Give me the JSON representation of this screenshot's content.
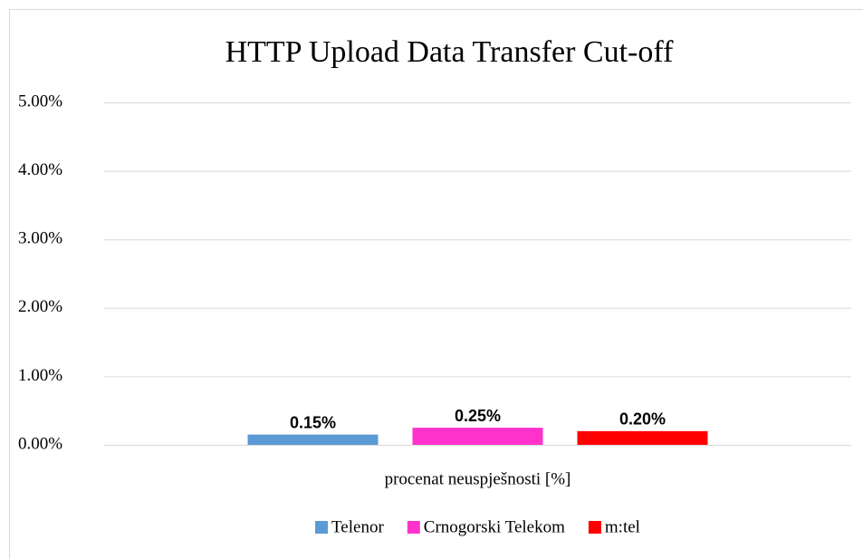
{
  "chart_data": {
    "type": "bar",
    "title": "HTTP Upload Data Transfer Cut-off",
    "categories": [
      "procenat neuspješnosti [%]"
    ],
    "series": [
      {
        "name": "Telenor",
        "color": "#5b9bd5",
        "values": [
          0.15
        ],
        "value_labels": [
          "0.15%"
        ]
      },
      {
        "name": "Crnogorski Telekom",
        "color": "#ff33cc",
        "values": [
          0.25
        ],
        "value_labels": [
          "0.25%"
        ]
      },
      {
        "name": "m:tel",
        "color": "#ff0000",
        "values": [
          0.2
        ],
        "value_labels": [
          "0.20%"
        ]
      }
    ],
    "ylim": [
      0,
      5
    ],
    "yticks": [
      {
        "value": 0,
        "label": "0.00%"
      },
      {
        "value": 1,
        "label": "1.00%"
      },
      {
        "value": 2,
        "label": "2.00%"
      },
      {
        "value": 3,
        "label": "3.00%"
      },
      {
        "value": 4,
        "label": "4.00%"
      },
      {
        "value": 5,
        "label": "5.00%"
      }
    ],
    "grid": true,
    "legend": "bottom"
  }
}
